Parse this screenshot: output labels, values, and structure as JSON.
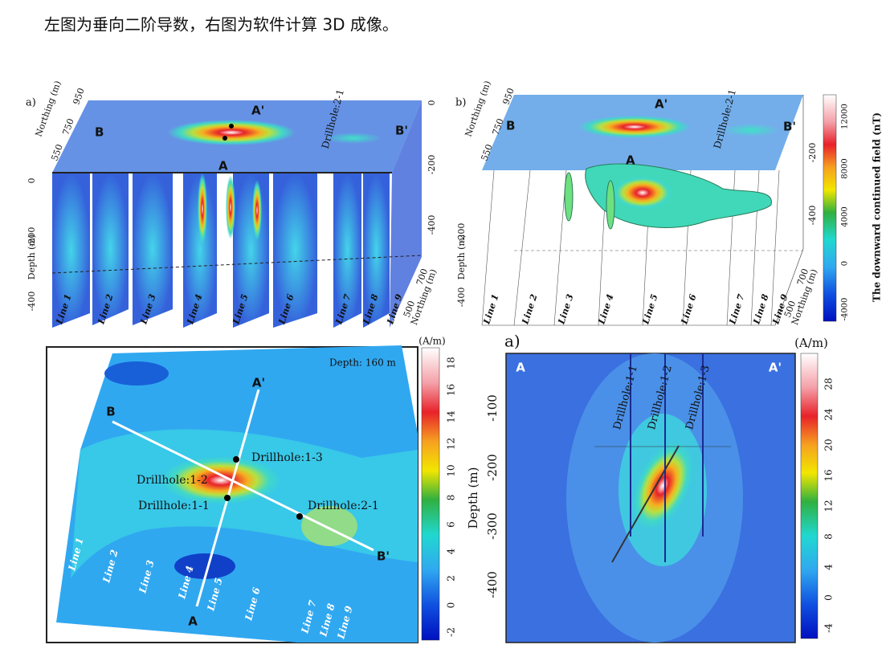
{
  "caption": "左图为垂向二阶导数，右图为软件计算 3D 成像。",
  "panel_tl": {
    "label": "a)",
    "northing_title": "Northing (m)",
    "northing_ticks": [
      "550",
      "750",
      "950"
    ],
    "points": [
      "B",
      "A'",
      "A",
      "B'"
    ],
    "drillhole": "Drillhole:2-1",
    "depth_title": "Depth (m)",
    "depth_ticks": [
      "0",
      "-200",
      "-400"
    ],
    "right_ticks": [
      "0",
      "-200",
      "-400"
    ],
    "lines": [
      "Line 1",
      "Line 2",
      "Line 3",
      "Line 4",
      "Line 5",
      "Line 6",
      "Line 7",
      "Line 8",
      "Line 9"
    ],
    "northing2_title": "Northing (m)",
    "northing2_ticks": [
      "500",
      "700"
    ]
  },
  "panel_tr": {
    "label": "b)",
    "northing_title": "Northing (m)",
    "northing_ticks": [
      "550",
      "750",
      "950"
    ],
    "points": [
      "B",
      "A'",
      "A",
      "B'"
    ],
    "drillhole": "Drillhole:2-1",
    "depth_title": "Depth (m)",
    "depth_ticks": [
      "-200",
      "-400"
    ],
    "right_ticks": [
      "-200",
      "-400"
    ],
    "lines": [
      "Line 1",
      "Line 2",
      "Line 3",
      "Line 4",
      "Line 5",
      "Line 6",
      "Line 7",
      "Line 8",
      "Line 9"
    ],
    "northing2_title": "Northing (m)",
    "northing2_ticks": [
      "500",
      "700"
    ],
    "colorbar_title": "The downward continued field (nT)",
    "colorbar_ticks": [
      "12000",
      "8000",
      "4000",
      "0",
      "-4000"
    ]
  },
  "panel_bl": {
    "depth_note": "Depth: 160 m",
    "points": [
      "A'",
      "B",
      "B'",
      "A"
    ],
    "drillholes": [
      "Drillhole:1-3",
      "Drillhole:1-2",
      "Drillhole:1-1",
      "Drillhole:2-1"
    ],
    "lines": [
      "Line 1",
      "Line 2",
      "Line 3",
      "Line 4",
      "Line 5",
      "Line 6",
      "Line 7",
      "Line 8",
      "Line 9"
    ],
    "colorbar_title": "(A/m)",
    "colorbar_ticks": [
      "18",
      "16",
      "14",
      "12",
      "10",
      "8",
      "6",
      "4",
      "2",
      "0",
      "-2"
    ]
  },
  "panel_br": {
    "label": "a)",
    "points": [
      "A",
      "A'"
    ],
    "y_title": "Depth (m)",
    "yticks": [
      "-100",
      "-200",
      "-300",
      "-400"
    ],
    "drillholes": [
      "Drillhole:1-1",
      "Drillhole:1-2",
      "Drillhole:1-3"
    ],
    "colorbar_title": "(A/m)",
    "colorbar_ticks": [
      "28",
      "24",
      "20",
      "16",
      "12",
      "8",
      "4",
      "0",
      "-4"
    ]
  }
}
